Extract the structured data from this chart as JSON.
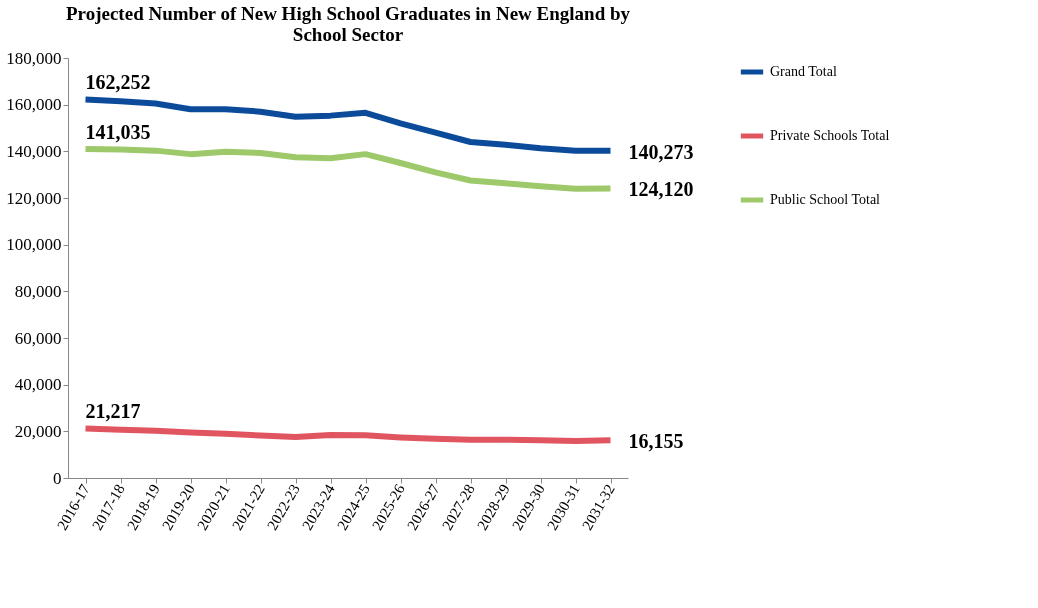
{
  "chart_data": {
    "type": "line",
    "title": "Projected Number of  New High School Graduates in New England by School Sector",
    "categories": [
      "2016-17",
      "2017-18",
      "2018-19",
      "2019-20",
      "2020-21",
      "2021-22",
      "2022-23",
      "2023-24",
      "2024-25",
      "2025-26",
      "2026-27",
      "2027-28",
      "2028-29",
      "2029-30",
      "2030-31",
      "2031-32"
    ],
    "series": [
      {
        "name": "Grand Total",
        "color": "#0b4b9a",
        "values": [
          162252,
          161500,
          160500,
          158000,
          158000,
          157000,
          154800,
          155300,
          156500,
          152000,
          148000,
          144000,
          142800,
          141300,
          140300,
          140273
        ],
        "value_labels": [
          "162,252",
          null,
          null,
          null,
          null,
          null,
          null,
          null,
          null,
          null,
          null,
          null,
          null,
          null,
          null,
          "140,273"
        ]
      },
      {
        "name": "Private Schools Total",
        "color": "#e05560",
        "values": [
          21217,
          20700,
          20200,
          19500,
          19000,
          18200,
          17600,
          18400,
          18300,
          17400,
          16800,
          16400,
          16400,
          16200,
          15900,
          16155
        ],
        "value_labels": [
          "21,217",
          null,
          null,
          null,
          null,
          null,
          null,
          null,
          null,
          null,
          null,
          null,
          null,
          null,
          null,
          "16,155"
        ]
      },
      {
        "name": "Public School Total",
        "color": "#9dc96a",
        "values": [
          141035,
          140800,
          140300,
          138800,
          139800,
          139300,
          137500,
          137000,
          138800,
          135000,
          131000,
          127500,
          126300,
          125000,
          124000,
          124120
        ],
        "value_labels": [
          "141,035",
          null,
          null,
          null,
          null,
          null,
          null,
          null,
          null,
          null,
          null,
          null,
          null,
          null,
          null,
          "124,120"
        ]
      }
    ],
    "ylim": [
      0,
      180000
    ],
    "yticks": [
      0,
      {
        "value": 20000,
        "label": "20,000"
      },
      {
        "value": 40000,
        "label": "40,000"
      },
      {
        "value": 60000,
        "label": "60,000"
      },
      {
        "value": 80000,
        "label": "80,000"
      },
      {
        "value": 100000,
        "label": "100,000"
      },
      {
        "value": 120000,
        "label": "120,000"
      },
      {
        "value": 140000,
        "label": "140,000"
      },
      {
        "value": 160000,
        "label": "160,000"
      },
      {
        "value": 180000,
        "label": "180,000"
      }
    ],
    "grid": false,
    "legend": "right",
    "marker": "none",
    "line_style": "solid"
  }
}
